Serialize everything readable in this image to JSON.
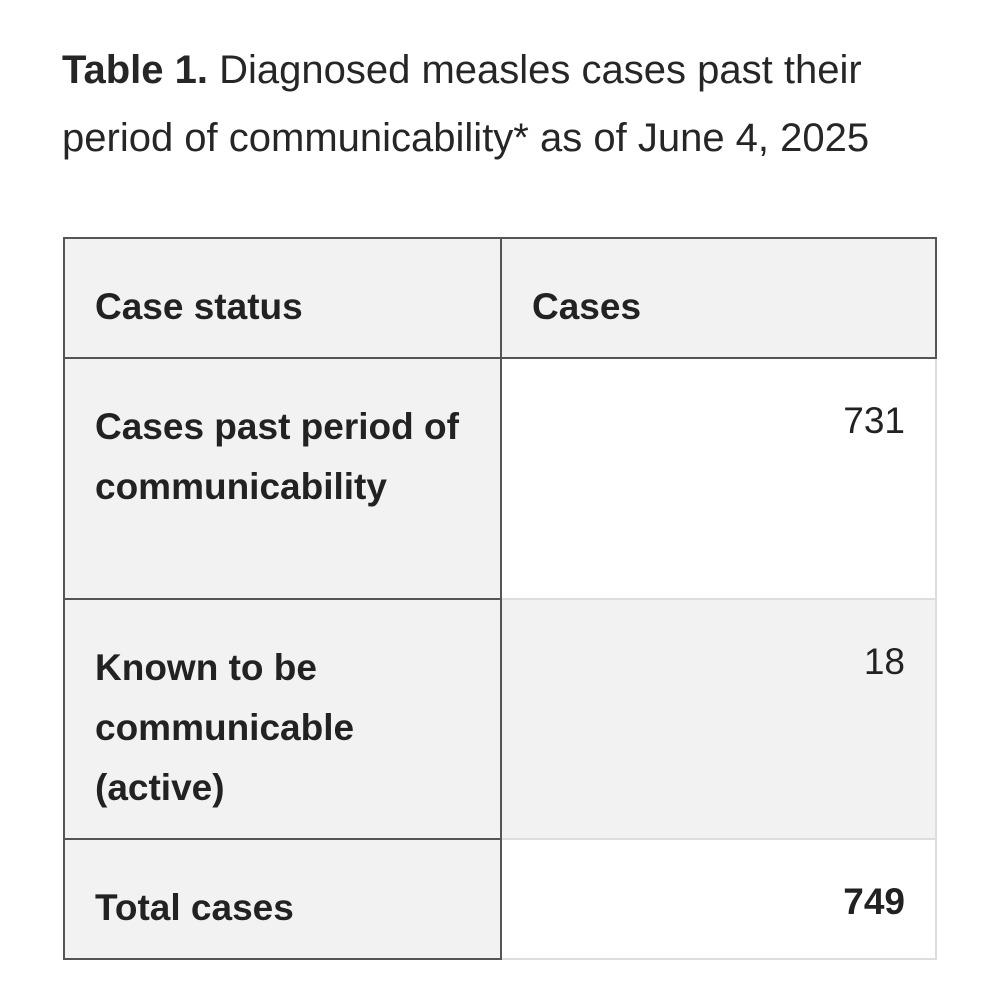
{
  "caption": {
    "label": "Table 1.",
    "text": "Diagnosed measles cases past their period of communicability* as of June 4, 2025"
  },
  "table": {
    "headers": [
      "Case status",
      "Cases"
    ],
    "rows": [
      {
        "status": "Cases past period of communicability",
        "cases": "731"
      },
      {
        "status": "Known to be communicable (active)",
        "cases": "18"
      },
      {
        "status": "Total cases",
        "cases": "749"
      }
    ]
  },
  "colors": {
    "header_bg": "#f2f2f2",
    "border_dark": "#555555",
    "border_light": "#dddddd"
  }
}
